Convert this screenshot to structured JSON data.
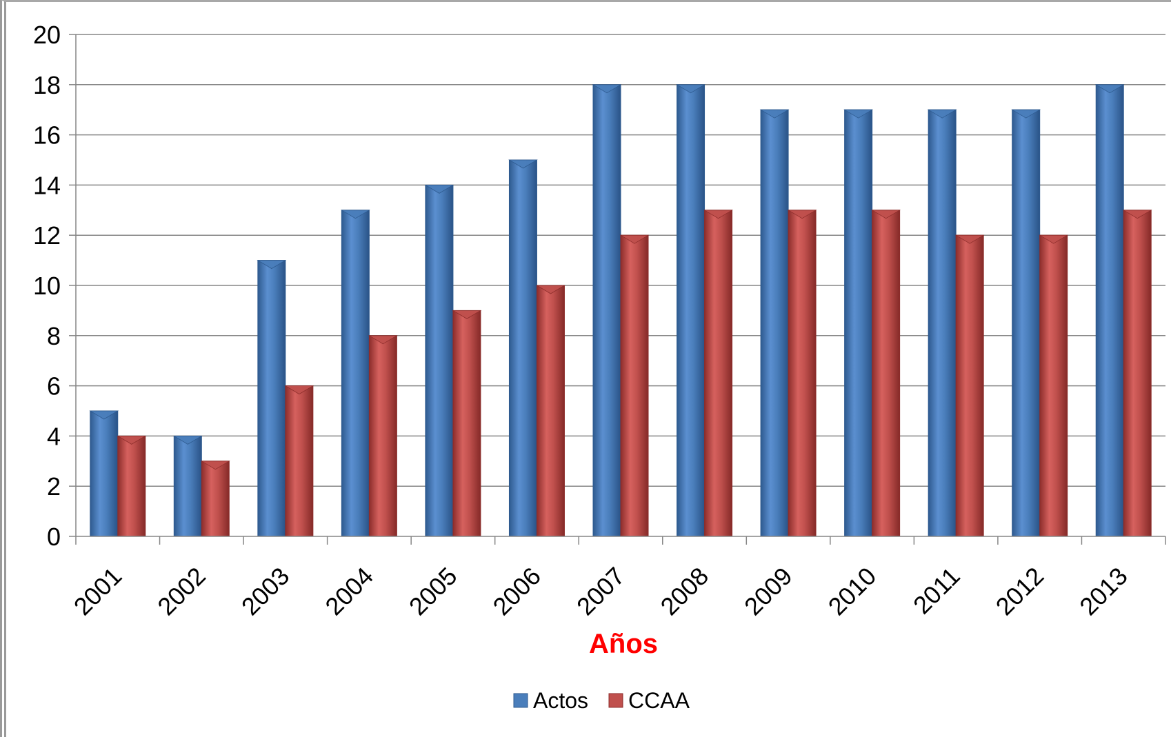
{
  "chart_data": {
    "type": "bar",
    "title": "",
    "xlabel": "Años",
    "ylabel": "",
    "categories": [
      "2001",
      "2002",
      "2003",
      "2004",
      "2005",
      "2006",
      "2007",
      "2008",
      "2009",
      "2010",
      "2011",
      "2012",
      "2013"
    ],
    "series": [
      {
        "name": "Actos",
        "values": [
          5,
          4,
          11,
          13,
          14,
          15,
          18,
          18,
          17,
          17,
          17,
          17,
          18
        ]
      },
      {
        "name": "CCAA",
        "values": [
          4,
          3,
          6,
          8,
          9,
          10,
          12,
          13,
          13,
          13,
          12,
          12,
          13
        ]
      }
    ],
    "ylim": [
      0,
      20
    ],
    "yticks": [
      0,
      2,
      4,
      6,
      8,
      10,
      12,
      14,
      16,
      18,
      20
    ],
    "grid": true,
    "legend_position": "bottom"
  },
  "colors": {
    "actos": "#4a7ebb",
    "actos_dark": "#2e5a8f",
    "ccaa": "#c0504d",
    "ccaa_dark": "#8c2d2b",
    "axis_title": "#ff0000",
    "grid": "#868686"
  }
}
